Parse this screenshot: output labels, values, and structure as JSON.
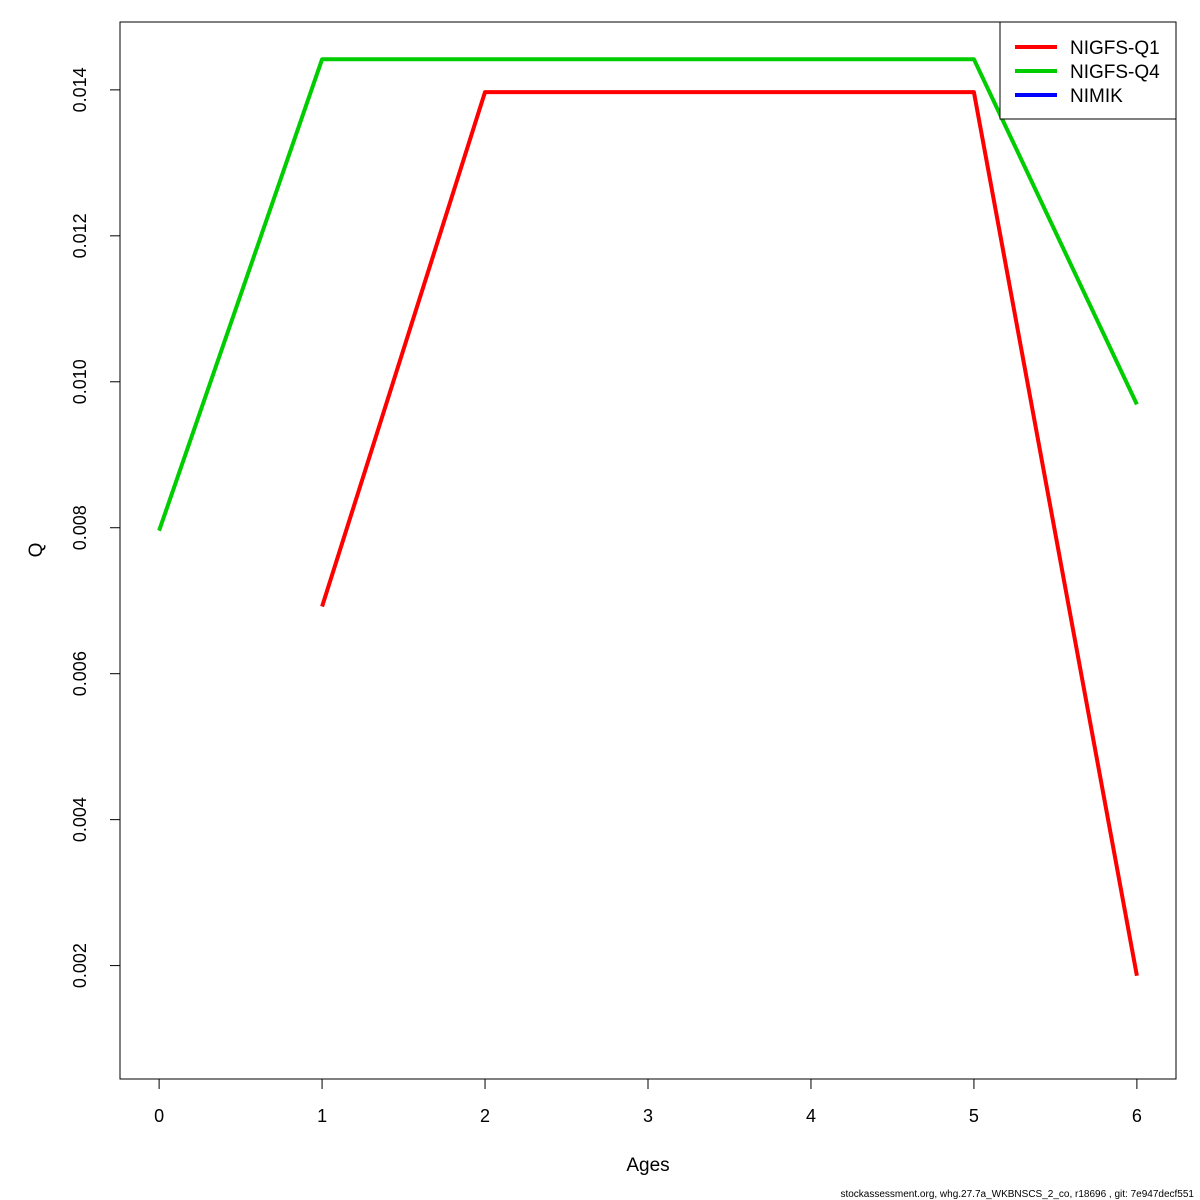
{
  "chart_data": {
    "type": "line",
    "title": "",
    "xlabel": "Ages",
    "ylabel": "Q",
    "xlim": [
      -0.24,
      6.24
    ],
    "ylim": [
      0.000446,
      0.01493
    ],
    "x_ticks": [
      0,
      1,
      2,
      3,
      4,
      5,
      6
    ],
    "y_ticks": [
      0.002,
      0.004,
      0.006,
      0.008,
      0.01,
      0.012,
      0.014
    ],
    "y_tick_labels": [
      "0.002",
      "0.004",
      "0.006",
      "0.008",
      "0.010",
      "0.012",
      "0.014"
    ],
    "grid": false,
    "legend_position": "top-right",
    "series": [
      {
        "name": "NIGFS-Q1",
        "color": "#ff0000",
        "x": [
          1,
          2,
          3,
          4,
          5,
          6
        ],
        "y": [
          0.00692,
          0.01397,
          0.01397,
          0.01397,
          0.01397,
          0.00186
        ]
      },
      {
        "name": "NIGFS-Q4",
        "color": "#00cd00",
        "x": [
          0,
          1,
          2,
          3,
          4,
          5,
          6
        ],
        "y": [
          0.00796,
          0.01442,
          0.01442,
          0.01442,
          0.01442,
          0.01442,
          0.00969
        ]
      },
      {
        "name": "NIMIK",
        "color": "#0000ff",
        "x": [],
        "y": []
      }
    ]
  },
  "footer": "stockassessment.org, whg.27.7a_WKBNSCS_2_co, r18696 , git: 7e947decf551"
}
